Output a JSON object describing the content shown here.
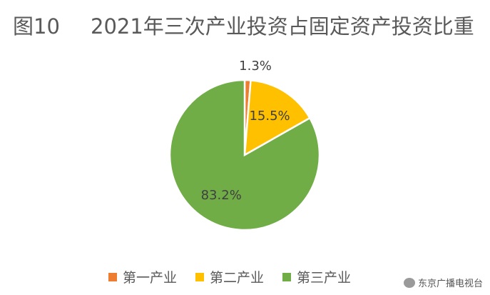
{
  "title": {
    "figure_number": "图10",
    "text": "2021年三次产业投资占固定资产投资比重"
  },
  "chart_data": {
    "type": "pie",
    "title": "2021年三次产业投资占固定资产投资比重",
    "categories": [
      "第一产业",
      "第二产业",
      "第三产业"
    ],
    "values": [
      1.3,
      15.5,
      83.2
    ],
    "labels": [
      "1.3%",
      "15.5%",
      "83.2%"
    ],
    "colors": [
      "#ED7D31",
      "#FFC000",
      "#70AD47"
    ],
    "legend_position": "bottom"
  },
  "legend": {
    "items": [
      {
        "label": "第一产业",
        "color": "#ED7D31"
      },
      {
        "label": "第二产业",
        "color": "#FFC000"
      },
      {
        "label": "第三产业",
        "color": "#70AD47"
      }
    ]
  },
  "watermark": {
    "text": "东京广播电视台",
    "icon": "wechat-icon"
  }
}
